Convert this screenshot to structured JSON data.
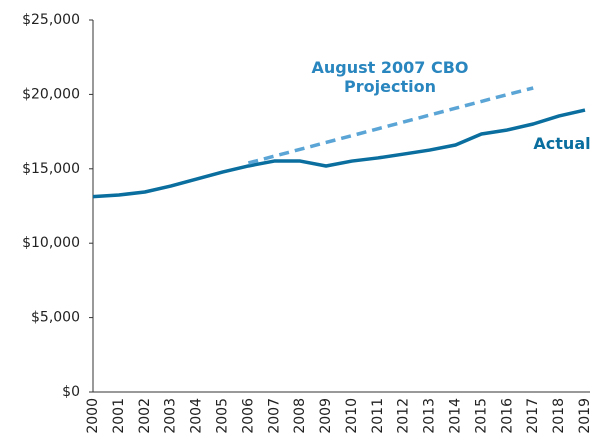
{
  "chart_data": {
    "type": "line",
    "x": [
      "2000",
      "2001",
      "2002",
      "2003",
      "2004",
      "2005",
      "2006",
      "2007",
      "2008",
      "2009",
      "2010",
      "2011",
      "2012",
      "2013",
      "2014",
      "2015",
      "2016",
      "2017",
      "2018",
      "2019"
    ],
    "series": [
      {
        "name": "Actual",
        "color": "#0a6e9e",
        "dashed": false,
        "values": [
          13130,
          13240,
          13440,
          13840,
          14310,
          14780,
          15190,
          15520,
          15520,
          15190,
          15520,
          15730,
          15990,
          16260,
          16600,
          17340,
          17610,
          18010,
          18550,
          18950
        ]
      },
      {
        "name": "August 2007 CBO Projection",
        "color": "#5aa5d6",
        "dashed": true,
        "values": [
          null,
          null,
          null,
          null,
          null,
          null,
          15390,
          15850,
          16310,
          16770,
          17230,
          17690,
          18150,
          18610,
          19070,
          19530,
          19990,
          20430,
          null,
          null
        ]
      }
    ],
    "ylim": [
      0,
      25000
    ],
    "yticks": [
      {
        "value": 0,
        "label": "$0"
      },
      {
        "value": 5000,
        "label": "$5,000"
      },
      {
        "value": 10000,
        "label": "$10,000"
      },
      {
        "value": 15000,
        "label": "$15,000"
      },
      {
        "value": 20000,
        "label": "$20,000"
      },
      {
        "value": 25000,
        "label": "$25,000"
      }
    ],
    "grid": false
  }
}
